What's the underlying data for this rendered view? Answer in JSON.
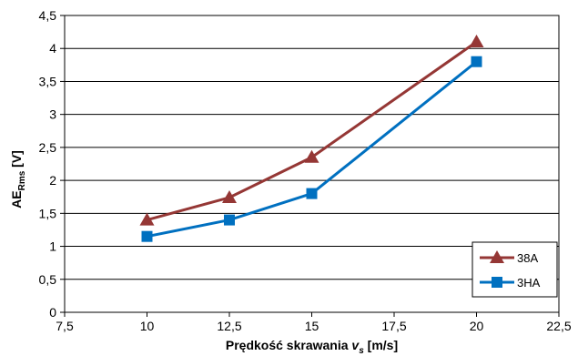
{
  "chart_data": {
    "type": "line",
    "title": "",
    "xlabel": "Prędkość skrawania v_s [m/s]",
    "xlabel_parts": {
      "main": "Prędkość skrawania ",
      "var": "v",
      "sub": "s",
      "unit": " [m/s]"
    },
    "ylabel": "AE_Rms [V]",
    "ylabel_parts": {
      "main": "AE",
      "sub": "Rms",
      "unit": "  [V]"
    },
    "xlim": [
      7.5,
      22.5
    ],
    "ylim": [
      0,
      4.5
    ],
    "x_ticks": [
      7.5,
      10,
      12.5,
      15,
      17.5,
      20,
      22.5
    ],
    "x_tick_labels": [
      "7,5",
      "10",
      "12,5",
      "15",
      "17,5",
      "20",
      "22,5"
    ],
    "y_ticks": [
      0,
      0.5,
      1,
      1.5,
      2,
      2.5,
      3,
      3.5,
      4,
      4.5
    ],
    "y_tick_labels": [
      "0",
      "0,5",
      "1",
      "1,5",
      "2",
      "2,5",
      "3",
      "3,5",
      "4",
      "4,5"
    ],
    "grid": {
      "horizontal": true,
      "vertical": false
    },
    "legend_position": "bottom-right",
    "series": [
      {
        "name": "38A",
        "color": "#953735",
        "marker": "triangle",
        "x": [
          10,
          12.5,
          15,
          20
        ],
        "values": [
          1.4,
          1.74,
          2.35,
          4.1
        ]
      },
      {
        "name": "3HA",
        "color": "#0070c0",
        "marker": "square",
        "x": [
          10,
          12.5,
          15,
          20
        ],
        "values": [
          1.15,
          1.4,
          1.8,
          3.8
        ]
      }
    ]
  }
}
